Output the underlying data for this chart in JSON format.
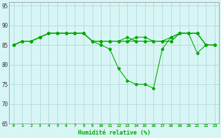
{
  "xlabel": "Humidité relative (%)",
  "ylim": [
    65,
    96
  ],
  "xlim": [
    -0.5,
    23.5
  ],
  "yticks": [
    65,
    70,
    75,
    80,
    85,
    90,
    95
  ],
  "xticks": [
    0,
    1,
    2,
    3,
    4,
    5,
    6,
    7,
    8,
    9,
    10,
    11,
    12,
    13,
    14,
    15,
    16,
    17,
    18,
    19,
    20,
    21,
    22,
    23
  ],
  "background_color": "#d8f5f5",
  "grid_color": "#b0d8d8",
  "line_color": "#00aa00",
  "markersize": 2.0,
  "linewidth": 0.8,
  "curves": [
    [
      85,
      86,
      86,
      87,
      88,
      88,
      88,
      88,
      88,
      86,
      85,
      84,
      79,
      76,
      75,
      75,
      74,
      84,
      87,
      88,
      88,
      83,
      85,
      85
    ],
    [
      85,
      86,
      86,
      87,
      88,
      88,
      88,
      88,
      88,
      86,
      86,
      86,
      86,
      86,
      86,
      86,
      86,
      86,
      86,
      88,
      88,
      88,
      85,
      85
    ],
    [
      85,
      86,
      86,
      87,
      88,
      88,
      88,
      88,
      88,
      86,
      86,
      86,
      86,
      87,
      86,
      86,
      86,
      86,
      86,
      88,
      88,
      88,
      85,
      85
    ],
    [
      85,
      86,
      86,
      87,
      88,
      88,
      88,
      88,
      88,
      86,
      86,
      86,
      86,
      86,
      87,
      87,
      86,
      86,
      87,
      88,
      88,
      88,
      85,
      85
    ]
  ]
}
